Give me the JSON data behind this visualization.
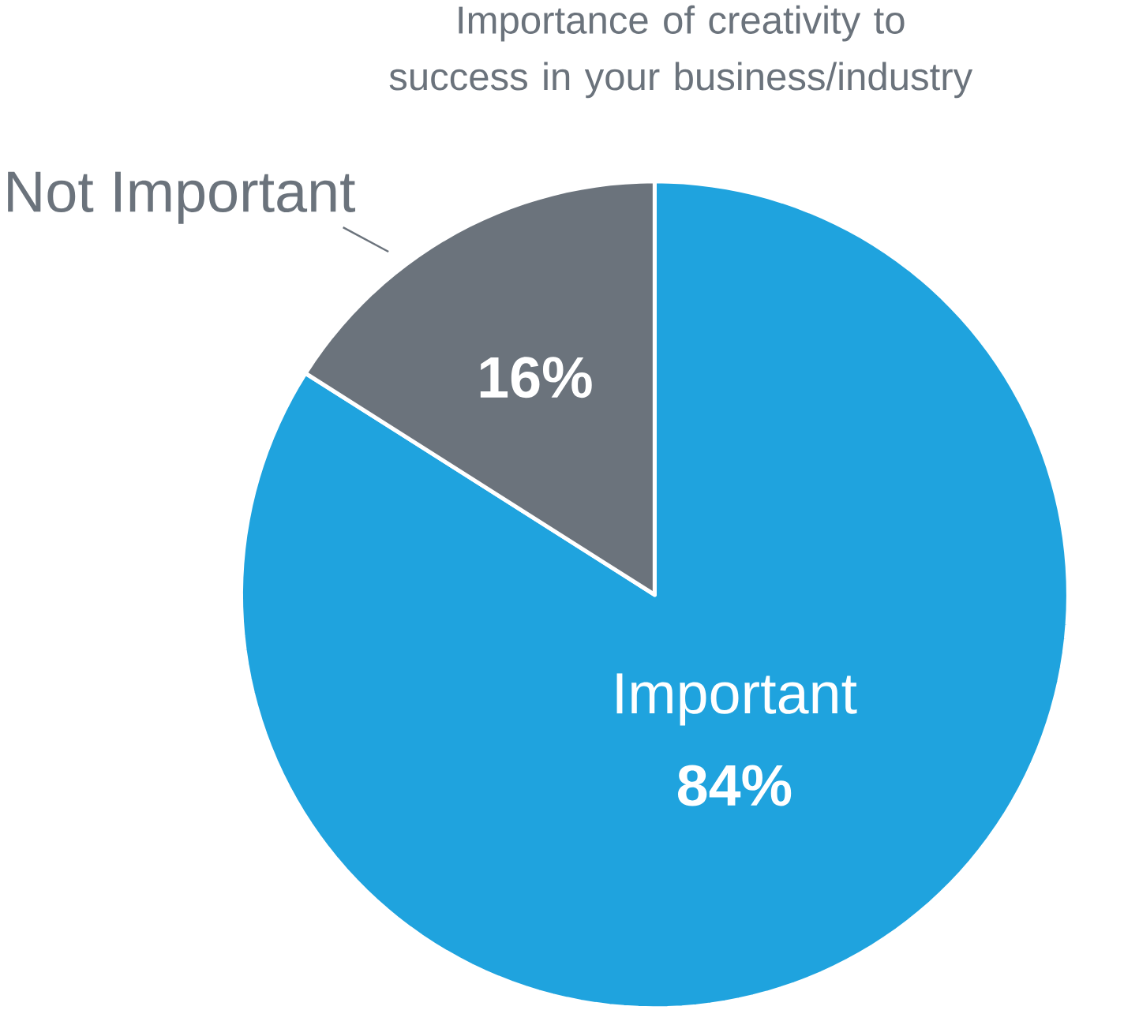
{
  "chart_data": {
    "type": "pie",
    "title": "Importance of creativity to success in your business/industry",
    "categories": [
      "Important",
      "Not Important"
    ],
    "values": [
      84,
      16
    ],
    "colors": [
      "#1fa3de",
      "#6b737c"
    ],
    "value_labels": [
      "84%",
      "16%"
    ]
  }
}
